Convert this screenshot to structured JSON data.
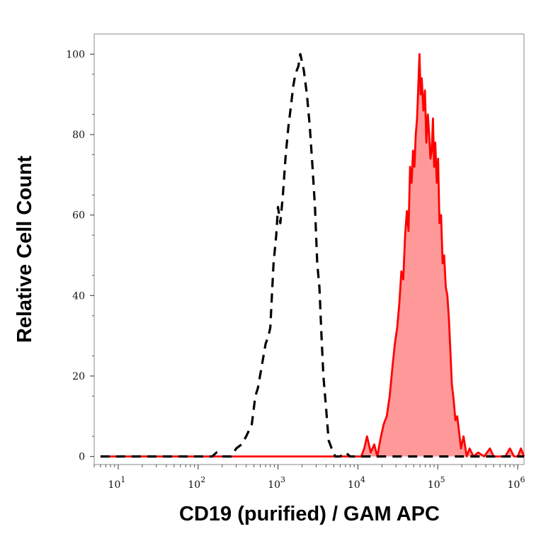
{
  "chart_data": {
    "type": "area",
    "title": "",
    "xlabel": "CD19 (purified) / GAM APC",
    "ylabel": "Relative Cell Count",
    "x_scale": "log",
    "xlim": [
      5,
      1200000
    ],
    "ylim": [
      -2,
      105
    ],
    "grid": false,
    "legend": "none",
    "y_ticks": [
      {
        "value": 0,
        "label": "0"
      },
      {
        "value": 20,
        "label": "20"
      },
      {
        "value": 40,
        "label": "40"
      },
      {
        "value": 60,
        "label": "60"
      },
      {
        "value": 80,
        "label": "80"
      },
      {
        "value": 100,
        "label": "100"
      }
    ],
    "x_ticks": [
      {
        "value": 10,
        "base": "10",
        "exp": "1"
      },
      {
        "value": 100,
        "base": "10",
        "exp": "2"
      },
      {
        "value": 1000,
        "base": "10",
        "exp": "3"
      },
      {
        "value": 10000,
        "base": "10",
        "exp": "4"
      },
      {
        "value": 100000,
        "base": "10",
        "exp": "5"
      },
      {
        "value": 1000000,
        "base": "10",
        "exp": "6"
      }
    ],
    "series": [
      {
        "style": "dashed",
        "color": "#000000",
        "fill": "none",
        "points": [
          [
            6,
            0
          ],
          [
            100,
            0
          ],
          [
            150,
            0
          ],
          [
            170,
            1
          ],
          [
            200,
            0
          ],
          [
            260,
            0
          ],
          [
            300,
            2
          ],
          [
            350,
            3
          ],
          [
            400,
            5
          ],
          [
            470,
            8
          ],
          [
            520,
            15
          ],
          [
            560,
            17
          ],
          [
            620,
            22
          ],
          [
            700,
            28
          ],
          [
            760,
            30
          ],
          [
            800,
            32
          ],
          [
            880,
            48
          ],
          [
            950,
            55
          ],
          [
            1000,
            62
          ],
          [
            1070,
            58
          ],
          [
            1150,
            65
          ],
          [
            1250,
            75
          ],
          [
            1350,
            82
          ],
          [
            1450,
            87
          ],
          [
            1550,
            92
          ],
          [
            1650,
            95
          ],
          [
            1800,
            97
          ],
          [
            1900,
            100
          ],
          [
            2000,
            98
          ],
          [
            2100,
            96
          ],
          [
            2300,
            90
          ],
          [
            2500,
            82
          ],
          [
            2700,
            72
          ],
          [
            2900,
            62
          ],
          [
            3100,
            48
          ],
          [
            3300,
            42
          ],
          [
            3500,
            30
          ],
          [
            3700,
            20
          ],
          [
            4000,
            12
          ],
          [
            4300,
            4
          ],
          [
            4700,
            2
          ],
          [
            5200,
            0
          ],
          [
            6000,
            0
          ],
          [
            7000,
            1
          ],
          [
            8000,
            0
          ],
          [
            10000,
            0
          ],
          [
            20000,
            0
          ],
          [
            30000,
            0
          ],
          [
            50000,
            0
          ],
          [
            70000,
            0
          ],
          [
            100000,
            0
          ],
          [
            1200000,
            0
          ]
        ]
      },
      {
        "style": "solid",
        "color": "#ff0000",
        "fill": "#ff9999",
        "points": [
          [
            6,
            0
          ],
          [
            1000,
            0
          ],
          [
            5000,
            0
          ],
          [
            10000,
            0
          ],
          [
            11000,
            0
          ],
          [
            12000,
            2
          ],
          [
            13000,
            5
          ],
          [
            14500,
            1
          ],
          [
            16000,
            3
          ],
          [
            17500,
            0
          ],
          [
            19000,
            4
          ],
          [
            21000,
            8
          ],
          [
            23000,
            10
          ],
          [
            25000,
            15
          ],
          [
            27000,
            22
          ],
          [
            29000,
            28
          ],
          [
            31000,
            32
          ],
          [
            33000,
            38
          ],
          [
            35000,
            46
          ],
          [
            37000,
            44
          ],
          [
            39000,
            55
          ],
          [
            41000,
            61
          ],
          [
            43000,
            56
          ],
          [
            45000,
            72
          ],
          [
            47000,
            68
          ],
          [
            49000,
            76
          ],
          [
            51000,
            72
          ],
          [
            53000,
            80
          ],
          [
            55000,
            84
          ],
          [
            57000,
            92
          ],
          [
            59000,
            100
          ],
          [
            61000,
            90
          ],
          [
            63000,
            94
          ],
          [
            66000,
            86
          ],
          [
            69000,
            91
          ],
          [
            72000,
            78
          ],
          [
            75000,
            85
          ],
          [
            78000,
            80
          ],
          [
            81000,
            74
          ],
          [
            84000,
            76
          ],
          [
            87000,
            84
          ],
          [
            90000,
            72
          ],
          [
            93000,
            78
          ],
          [
            97000,
            68
          ],
          [
            101000,
            74
          ],
          [
            105000,
            58
          ],
          [
            110000,
            60
          ],
          [
            115000,
            48
          ],
          [
            120000,
            50
          ],
          [
            126000,
            42
          ],
          [
            132000,
            40
          ],
          [
            138000,
            34
          ],
          [
            144000,
            26
          ],
          [
            150000,
            18
          ],
          [
            158000,
            14
          ],
          [
            166000,
            9
          ],
          [
            175000,
            10
          ],
          [
            185000,
            6
          ],
          [
            195000,
            2
          ],
          [
            210000,
            5
          ],
          [
            230000,
            0
          ],
          [
            250000,
            2
          ],
          [
            280000,
            0
          ],
          [
            320000,
            1
          ],
          [
            380000,
            0
          ],
          [
            450000,
            2
          ],
          [
            500000,
            0
          ],
          [
            600000,
            0
          ],
          [
            700000,
            0
          ],
          [
            800000,
            2
          ],
          [
            900000,
            0
          ],
          [
            1000000,
            0
          ],
          [
            1100000,
            2
          ],
          [
            1200000,
            0
          ]
        ]
      }
    ]
  }
}
